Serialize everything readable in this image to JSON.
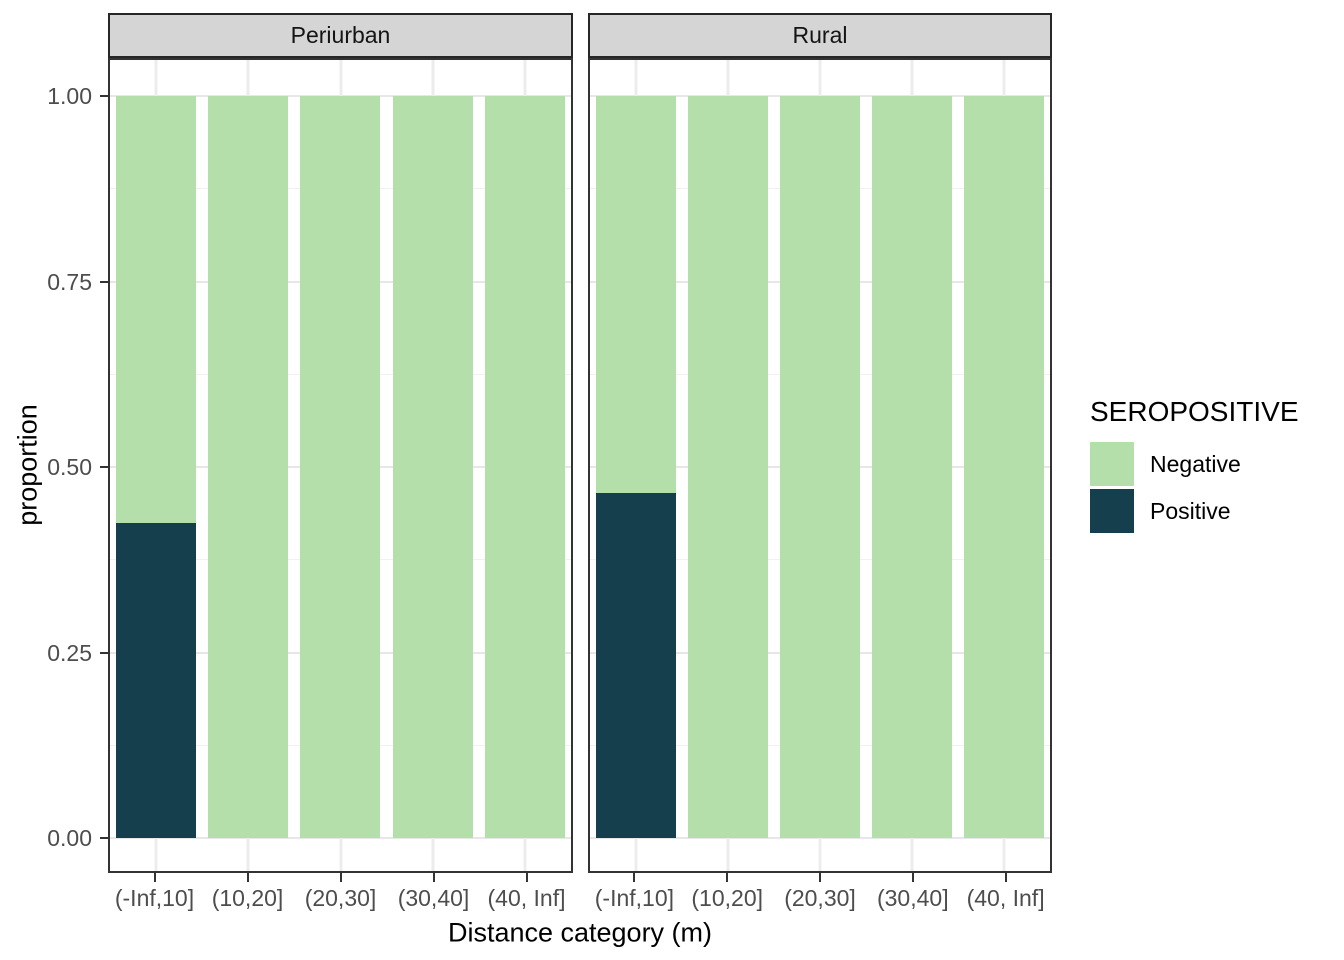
{
  "chart_data": {
    "type": "bar",
    "stacked": true,
    "orientation": "vertical",
    "xlabel": "Distance category (m)",
    "ylabel": "proportion",
    "ylim": [
      0,
      1
    ],
    "y_ticks": [
      0,
      0.25,
      0.5,
      0.75,
      1
    ],
    "y_tick_labels": [
      "0.00",
      "0.25",
      "0.50",
      "0.75",
      "1.00"
    ],
    "y_minor_ticks": [
      0.125,
      0.375,
      0.625,
      0.875
    ],
    "categories": [
      "(-Inf,10]",
      "(10,20]",
      "(20,30]",
      "(30,40]",
      "(40, Inf]"
    ],
    "facets": [
      "Periurban",
      "Rural"
    ],
    "panels": [
      {
        "facet": "Periurban",
        "series": [
          {
            "name": "Negative",
            "values": [
              0.575,
              1,
              1,
              1,
              1
            ]
          },
          {
            "name": "Positive",
            "values": [
              0.425,
              0,
              0,
              0,
              0
            ]
          }
        ]
      },
      {
        "facet": "Rural",
        "series": [
          {
            "name": "Negative",
            "values": [
              0.535,
              1,
              1,
              1,
              1
            ]
          },
          {
            "name": "Positive",
            "values": [
              0.465,
              0,
              0,
              0,
              0
            ]
          }
        ]
      }
    ],
    "legend": {
      "title": "SEROPOSITIVE",
      "position": "right",
      "items": [
        {
          "label": "Negative",
          "color": "#b4dfaa"
        },
        {
          "label": "Positive",
          "color": "#163f4e"
        }
      ]
    },
    "colors": {
      "Negative": "#b4dfaa",
      "Positive": "#163f4e"
    },
    "grid": true,
    "style": {
      "strip_fill": "#d5d5d5",
      "panel_border": "#333333",
      "grid_major": "#e7e7e7",
      "grid_minor": "#f1f1f1",
      "tick_label_color": "#4d4d4d"
    }
  }
}
